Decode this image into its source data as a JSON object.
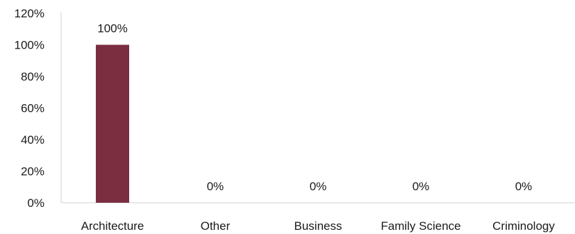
{
  "chart_data": {
    "type": "bar",
    "title": "",
    "xlabel": "",
    "ylabel": "",
    "categories": [
      "Architecture",
      "Other",
      "Business",
      "Family Science",
      "Criminology"
    ],
    "values": [
      100,
      0,
      0,
      0,
      0
    ],
    "data_labels": [
      "100%",
      "0%",
      "0%",
      "0%",
      "0%"
    ],
    "ylim": [
      0,
      120
    ],
    "yticks": [
      0,
      20,
      40,
      60,
      80,
      100,
      120
    ],
    "ytick_labels": [
      "0%",
      "20%",
      "40%",
      "60%",
      "80%",
      "100%",
      "120%"
    ],
    "grid": false,
    "legend": "none",
    "bar_color": "#7a2e40"
  }
}
